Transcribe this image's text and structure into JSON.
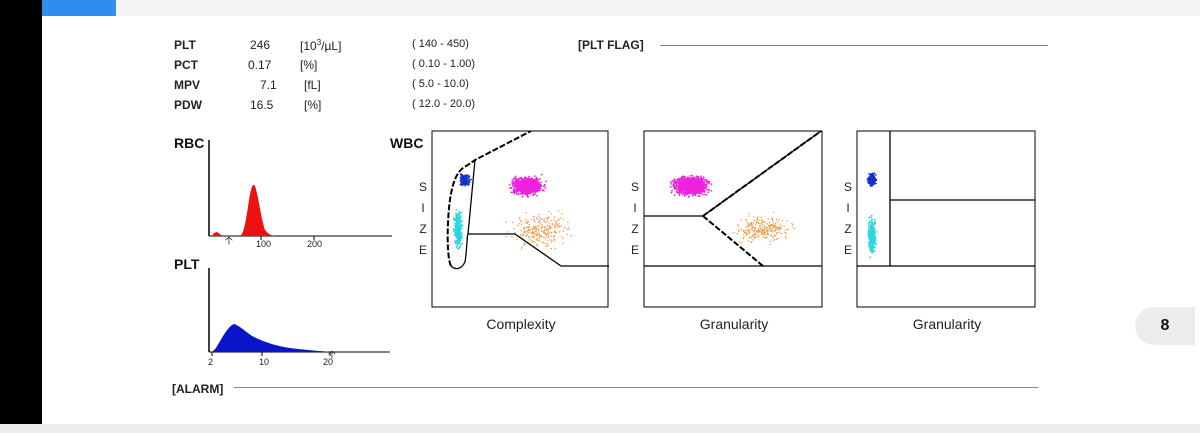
{
  "plt_params": [
    {
      "name": "PLT",
      "value": "246",
      "unit": "[10",
      "unit_sup": "3",
      "unit_tail": "/µL]",
      "range": "( 140 -  450)"
    },
    {
      "name": "PCT",
      "value": "0.17",
      "unit": "[%]",
      "unit_sup": "",
      "unit_tail": "",
      "range": "( 0.10 -  1.00)"
    },
    {
      "name": "MPV",
      "value": "7.1",
      "unit": "[fL]",
      "unit_sup": "",
      "unit_tail": "",
      "range": "(  5.0 -  10.0)"
    },
    {
      "name": "PDW",
      "value": "16.5",
      "unit": "[%]",
      "unit_sup": "",
      "unit_tail": "",
      "range": "( 12.0 -  20.0)"
    }
  ],
  "plt_flag_label": "[PLT FLAG]",
  "alarm_label": "[ALARM]",
  "rbc_label": "RBC",
  "plt_label": "PLT",
  "wbc_label": "WBC",
  "rbc_ticks": [
    "100",
    "200"
  ],
  "plt_ticks": [
    "2",
    "10",
    "20"
  ],
  "size_letters": [
    "S",
    "I",
    "Z",
    "E"
  ],
  "scatter_xlabels": [
    "Complexity",
    "Granularity",
    "Granularity"
  ],
  "page_number": "8",
  "colors": {
    "rbc": "#ee1111",
    "plt": "#0a14c8",
    "lymph": "#2ad8dc",
    "mono": "#1432c8",
    "neut": "#ee22dd",
    "eos": "#ee9944"
  }
}
